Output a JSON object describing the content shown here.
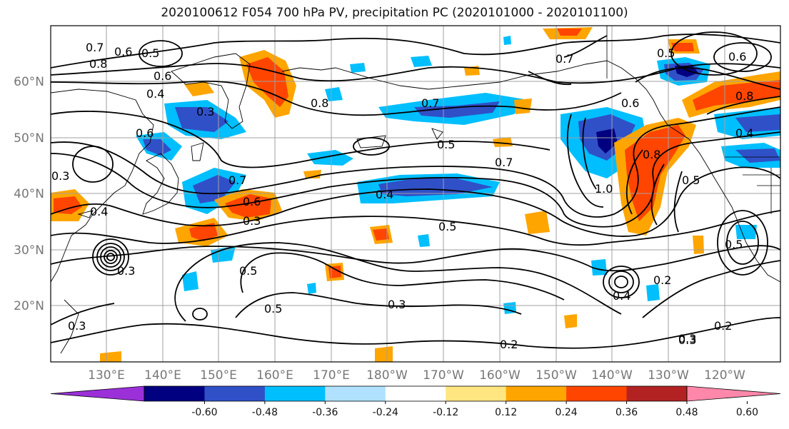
{
  "title": "2020100612 F054 700 hPa PV, precipitation PC (2020101000 - 2020101100)",
  "lat_labels": [
    "60°N",
    "50°N",
    "40°N",
    "30°N",
    "20°N"
  ],
  "lon_labels": [
    "130°E",
    "140°E",
    "150°E",
    "160°E",
    "170°E",
    "180°W",
    "170°W",
    "160°W",
    "150°W",
    "140°W",
    "130°W",
    "120°W"
  ],
  "colorbar": {
    "colors": [
      "#9b30d9",
      "#000080",
      "#3050c8",
      "#00bfff",
      "#b0e2ff",
      "#ffffff",
      "#ffe680",
      "#ffa500",
      "#ff4500",
      "#b22222",
      "#ff88aa"
    ],
    "tick_labels": [
      "-0.60",
      "-0.48",
      "-0.36",
      "-0.24",
      "-0.12",
      "0.12",
      "0.24",
      "0.36",
      "0.48",
      "0.60"
    ]
  },
  "contour_labels": [
    "0.7",
    "0.6",
    "0.5",
    "0.8",
    "0.6",
    "0.4",
    "0.3",
    "0.6",
    "0.8",
    "0.7",
    "0.5",
    "0.7",
    "0.4",
    "0.5",
    "0.3",
    "0.6",
    "0.3",
    "0.7",
    "0.4",
    "0.5",
    "0.5",
    "0.3",
    "1.0",
    "0.8",
    "0.5",
    "0.4",
    "0.2",
    "0.2",
    "0.3",
    "0.2",
    "0.5",
    "0.7",
    "0.6",
    "0.5",
    "0.6",
    "0.8",
    "0.3",
    "0.3",
    "0.4",
    "0.3"
  ]
}
